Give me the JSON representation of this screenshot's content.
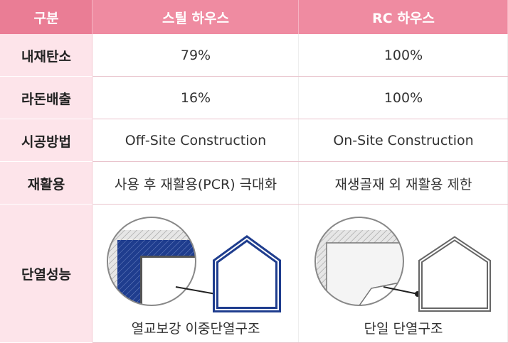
{
  "table": {
    "header": [
      "구분",
      "스틸 하우스",
      "RC 하우스"
    ],
    "rows": [
      [
        "내재탄소",
        "79%",
        "100%"
      ],
      [
        "라돈배출",
        "16%",
        "100%"
      ],
      [
        "시공방법",
        "Off-Site Construction",
        "On-Site Construction"
      ],
      [
        "재활용",
        "사용 후 재활용(PCR) 극대화",
        "재생골재 외 재활용 제한"
      ],
      [
        "단열성능",
        "열교보강 이중단열구조",
        "단일 단열구조"
      ]
    ]
  }
}
